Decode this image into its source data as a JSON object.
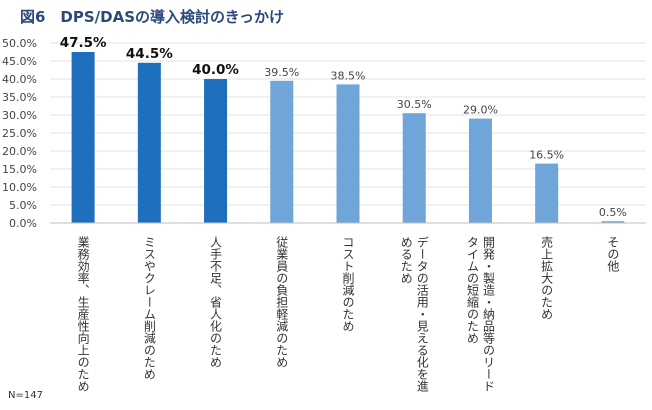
{
  "title": "図6　DPS/DASの導入検討のきっかけ",
  "sample_note": "N=147",
  "colors": {
    "highlight": "#1f6fbf",
    "normal": "#6fa5d8",
    "grid": "#e3e3e3"
  },
  "chart_data": {
    "type": "bar",
    "title": "図6　DPS/DASの導入検討のきっかけ",
    "xlabel": "",
    "ylabel": "",
    "ylim": [
      0,
      50
    ],
    "yticks": [
      0,
      5,
      10,
      15,
      20,
      25,
      30,
      35,
      40,
      45,
      50
    ],
    "ytick_labels": [
      "0.0%",
      "5.0%",
      "10.0%",
      "15.0%",
      "20.0%",
      "25.0%",
      "30.0%",
      "35.0%",
      "40.0%",
      "45.0%",
      "50.0%"
    ],
    "grid": true,
    "categories": [
      "業務効率、生産性向上のため",
      "ミスやクレーム削減のため",
      "人手不足、省人化のため",
      "従業員の負担軽減のため",
      "コスト削減のため",
      "データの活用・見える化を進めるため",
      "開発・製造・納品等のリードタイムの短縮のため",
      "売上拡大のため",
      "その他"
    ],
    "category_display": [
      "業務効率、生産性向上のため",
      "ミスやクレーム削減のため",
      "人手不足、省人化のため",
      "従業員の負担軽減のため",
      "コスト削減のため",
      "データの活用・見える化を進\nめるため",
      "開発・製造・納品等のリード\nタイムの短縮のため",
      "売上拡大のため",
      "その他"
    ],
    "values": [
      47.5,
      44.5,
      40.0,
      39.5,
      38.5,
      30.5,
      29.0,
      16.5,
      0.5
    ],
    "value_labels": [
      "47.5%",
      "44.5%",
      "40.0%",
      "39.5%",
      "38.5%",
      "30.5%",
      "29.0%",
      "16.5%",
      "0.5%"
    ],
    "highlighted_top": 3
  }
}
